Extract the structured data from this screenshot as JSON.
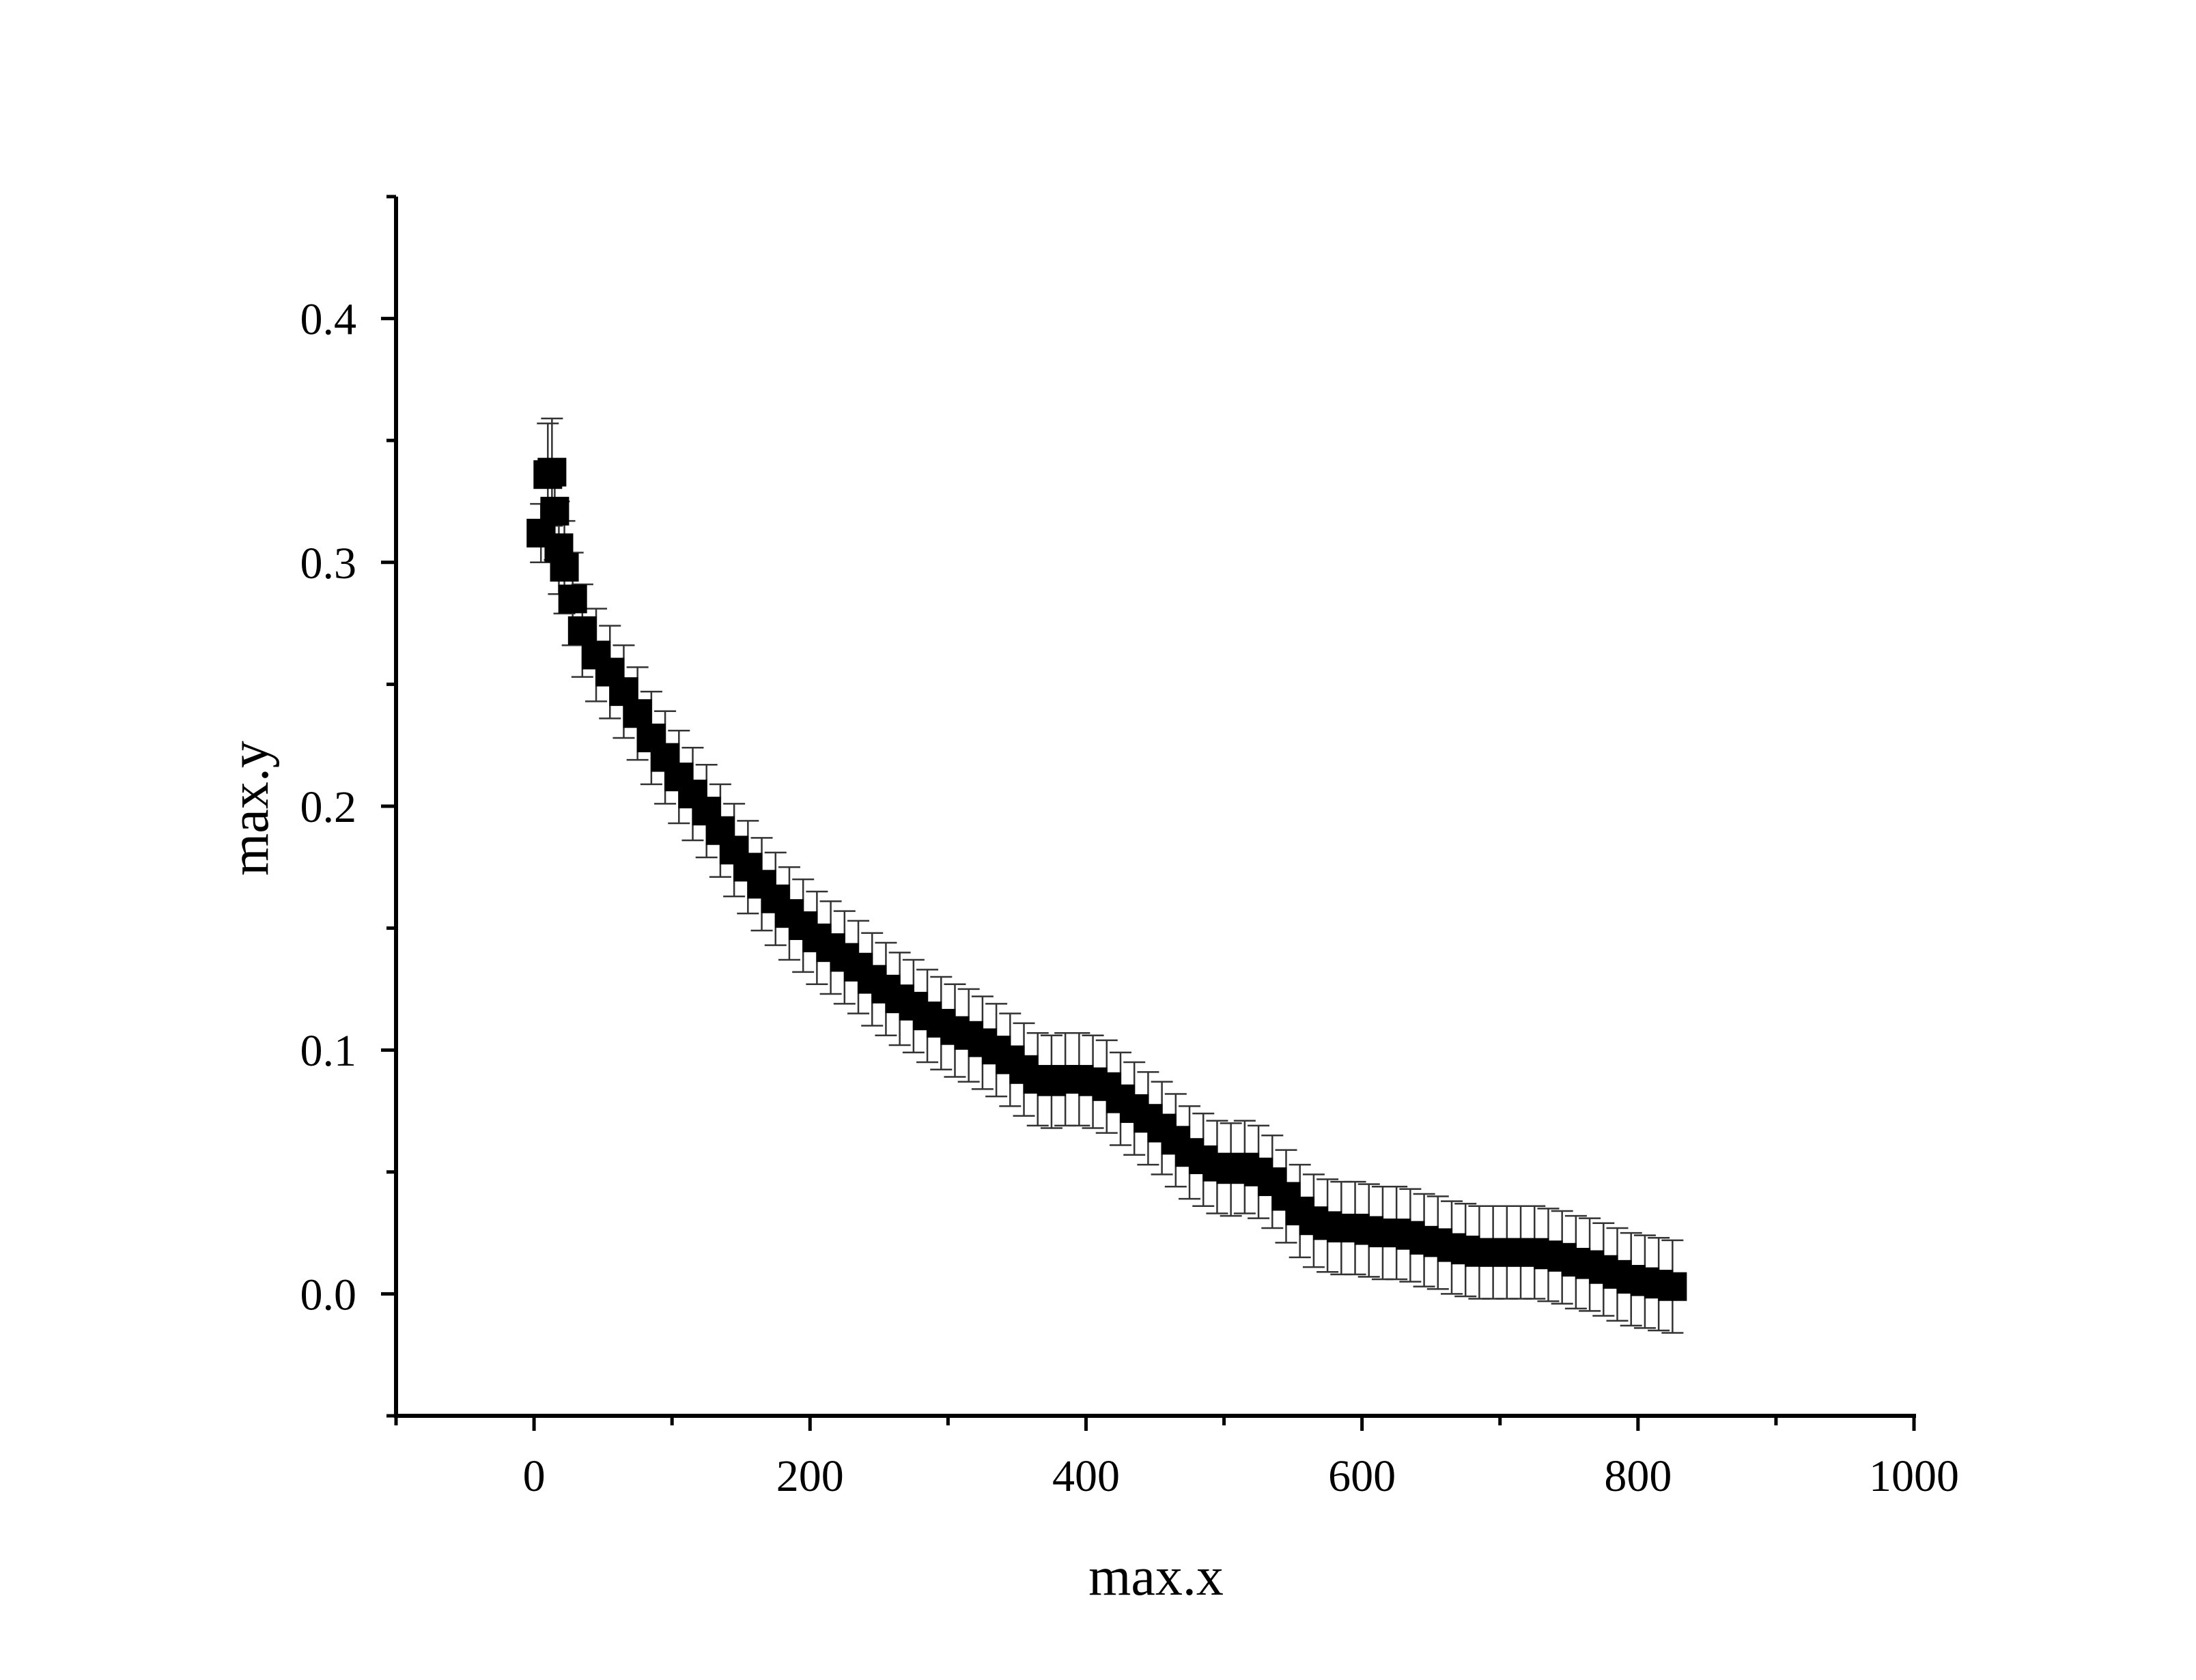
{
  "chart_data": {
    "type": "scatter",
    "title": "",
    "xlabel": "max.x",
    "ylabel": "max.y",
    "xlim": [
      -100,
      1000
    ],
    "ylim": [
      -0.05,
      0.45
    ],
    "x_ticks": [
      0,
      200,
      400,
      600,
      800,
      1000
    ],
    "x_tick_labels": [
      "0",
      "200",
      "400",
      "600",
      "800",
      "1000"
    ],
    "y_ticks": [
      0.0,
      0.1,
      0.2,
      0.3,
      0.4
    ],
    "y_tick_labels": [
      "0.0",
      "0.1",
      "0.2",
      "0.3",
      "0.4"
    ],
    "grid": false,
    "legend": "none",
    "marker": "square",
    "marker_color": "#000000",
    "error_bar_color": "#333333",
    "series": [
      {
        "error_bars": true,
        "x": [
          5,
          10,
          13,
          15,
          18,
          22,
          28,
          35,
          45,
          55,
          65,
          75,
          85,
          95,
          105,
          115,
          125,
          135,
          145,
          155,
          165,
          175,
          185,
          195,
          205,
          215,
          225,
          235,
          245,
          255,
          265,
          275,
          285,
          295,
          305,
          315,
          325,
          335,
          345,
          355,
          365,
          375,
          385,
          395,
          405,
          415,
          425,
          435,
          445,
          455,
          465,
          475,
          485,
          495,
          505,
          515,
          525,
          535,
          545,
          555,
          565,
          575,
          585,
          595,
          605,
          615,
          625,
          635,
          645,
          655,
          665,
          675,
          685,
          695,
          705,
          715,
          725,
          735,
          745,
          755,
          765,
          775,
          785,
          795,
          805,
          815,
          825
        ],
        "y": [
          0.312,
          0.336,
          0.337,
          0.321,
          0.306,
          0.298,
          0.285,
          0.272,
          0.262,
          0.255,
          0.247,
          0.238,
          0.228,
          0.22,
          0.212,
          0.205,
          0.198,
          0.19,
          0.182,
          0.175,
          0.168,
          0.162,
          0.156,
          0.151,
          0.146,
          0.142,
          0.138,
          0.134,
          0.129,
          0.125,
          0.121,
          0.118,
          0.114,
          0.111,
          0.108,
          0.106,
          0.103,
          0.1,
          0.096,
          0.092,
          0.088,
          0.087,
          0.088,
          0.088,
          0.087,
          0.085,
          0.08,
          0.076,
          0.072,
          0.068,
          0.063,
          0.058,
          0.055,
          0.052,
          0.051,
          0.052,
          0.05,
          0.046,
          0.04,
          0.034,
          0.03,
          0.028,
          0.027,
          0.027,
          0.026,
          0.025,
          0.025,
          0.024,
          0.022,
          0.021,
          0.019,
          0.018,
          0.017,
          0.017,
          0.017,
          0.017,
          0.017,
          0.016,
          0.015,
          0.013,
          0.012,
          0.01,
          0.008,
          0.006,
          0.005,
          0.004,
          0.003
        ],
        "error": [
          0.012,
          0.021,
          0.022,
          0.02,
          0.019,
          0.019,
          0.019,
          0.019,
          0.019,
          0.019,
          0.019,
          0.019,
          0.019,
          0.019,
          0.019,
          0.019,
          0.019,
          0.019,
          0.019,
          0.019,
          0.019,
          0.019,
          0.019,
          0.019,
          0.019,
          0.019,
          0.019,
          0.019,
          0.019,
          0.019,
          0.019,
          0.019,
          0.019,
          0.019,
          0.019,
          0.019,
          0.019,
          0.019,
          0.019,
          0.019,
          0.019,
          0.019,
          0.019,
          0.019,
          0.019,
          0.019,
          0.019,
          0.019,
          0.019,
          0.019,
          0.019,
          0.019,
          0.019,
          0.019,
          0.019,
          0.019,
          0.019,
          0.019,
          0.019,
          0.019,
          0.019,
          0.019,
          0.019,
          0.019,
          0.019,
          0.019,
          0.019,
          0.019,
          0.019,
          0.019,
          0.019,
          0.019,
          0.019,
          0.019,
          0.019,
          0.019,
          0.019,
          0.019,
          0.019,
          0.019,
          0.019,
          0.019,
          0.019,
          0.019,
          0.019,
          0.019,
          0.019
        ]
      }
    ]
  }
}
